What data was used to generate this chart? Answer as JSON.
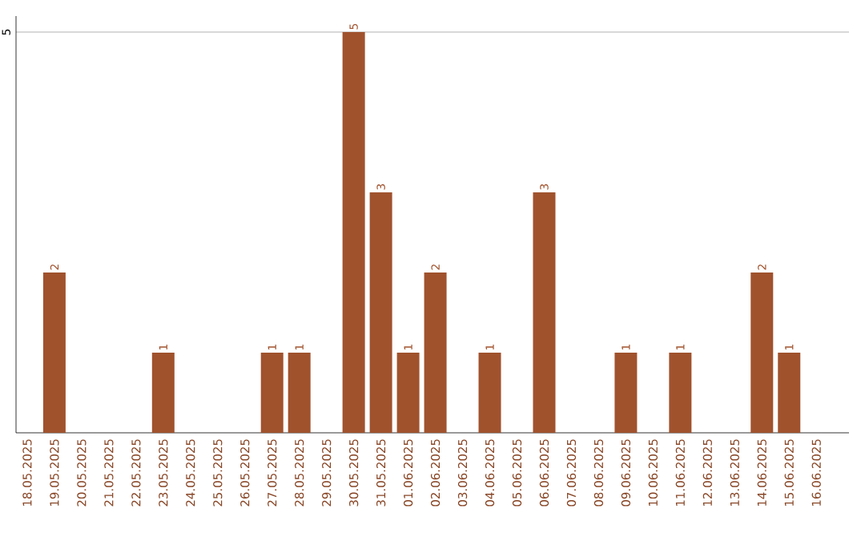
{
  "chart_data": {
    "type": "bar",
    "categories": [
      "18.05.2025",
      "19.05.2025",
      "20.05.2025",
      "21.05.2025",
      "22.05.2025",
      "23.05.2025",
      "24.05.2025",
      "25.05.2025",
      "26.05.2025",
      "27.05.2025",
      "28.05.2025",
      "29.05.2025",
      "30.05.2025",
      "31.05.2025",
      "01.06.2025",
      "02.06.2025",
      "03.06.2025",
      "04.06.2025",
      "05.06.2025",
      "06.06.2025",
      "07.06.2025",
      "08.06.2025",
      "09.06.2025",
      "10.06.2025",
      "11.06.2025",
      "12.06.2025",
      "13.06.2025",
      "14.06.2025",
      "15.06.2025",
      "16.06.2025"
    ],
    "values": [
      0,
      2,
      0,
      0,
      0,
      1,
      0,
      0,
      0,
      1,
      1,
      0,
      5,
      3,
      1,
      2,
      0,
      1,
      0,
      3,
      0,
      0,
      1,
      0,
      1,
      0,
      0,
      2,
      1,
      0
    ],
    "value_labels": [
      null,
      "2",
      null,
      null,
      null,
      "1",
      null,
      null,
      null,
      "1",
      "1",
      null,
      "5",
      "3",
      "1",
      "2",
      null,
      "1",
      null,
      "3",
      null,
      null,
      "1",
      null,
      "1",
      null,
      null,
      "2",
      "1",
      null
    ],
    "color": "#a0522d",
    "ylim": [
      0,
      5.2
    ],
    "yticks": [
      5
    ],
    "grid": "y"
  }
}
